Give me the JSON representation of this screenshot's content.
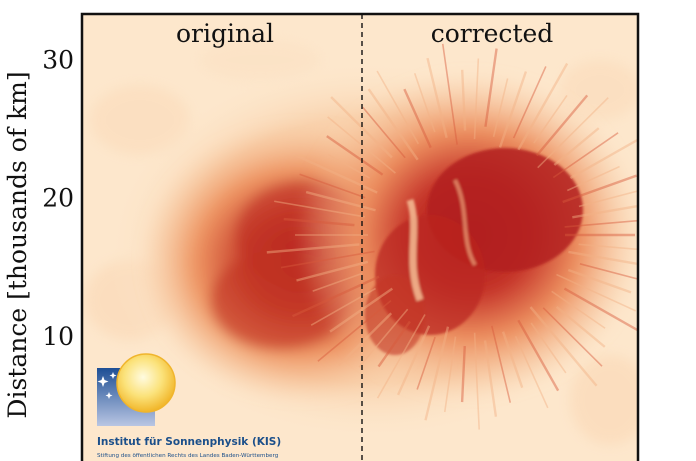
{
  "figure": {
    "y_axis_label": "Distance [thousands of km]",
    "y_ticks": [
      {
        "value": 10,
        "label": "10"
      },
      {
        "value": 20,
        "label": "20"
      },
      {
        "value": 30,
        "label": "30"
      }
    ],
    "y_range": [
      0,
      33.3
    ],
    "panels": {
      "left_label": "original",
      "right_label": "corrected"
    },
    "colors": {
      "background_light": "#fde7cc",
      "penumbra": "#ef9a66",
      "umbra": "#b8201c",
      "frame": "#111111",
      "logo_text": "#1b4f8a"
    }
  },
  "logo": {
    "icon": "sun-over-blue-square-icon",
    "title": "Institut für Sonnenphysik (KIS)",
    "subtitle": "Stiftung des öffentlichen Rechts des Landes Baden-Württemberg"
  }
}
